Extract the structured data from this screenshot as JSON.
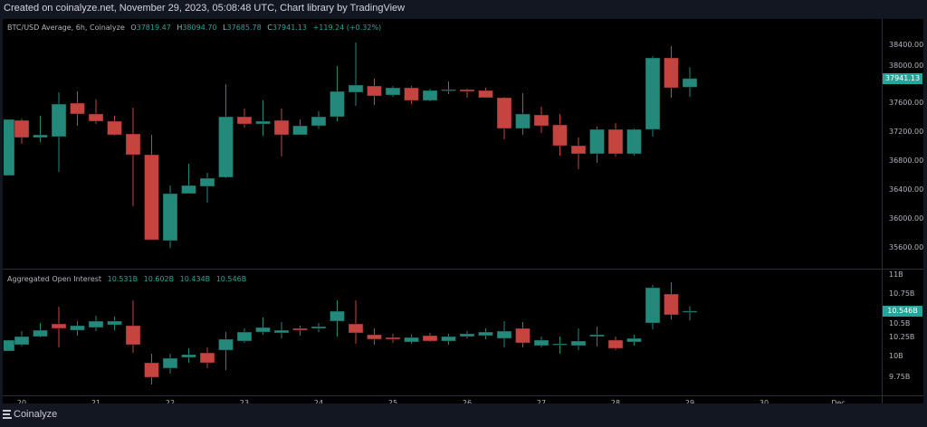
{
  "header": {
    "title": "Created on coinalyze.net, November 29, 2023, 05:08:48 UTC, Chart library by TradingView"
  },
  "colors": {
    "up": "#22897b",
    "down": "#c5443f",
    "accent": "#26a69a",
    "background": "#000000",
    "frame": "#131722"
  },
  "price_pane": {
    "symbol_label": "BTC/USD Average, 6h, Coinalyze",
    "o_key": "O",
    "o": "37819.47",
    "h_key": "H",
    "h": "38094.70",
    "l_key": "L",
    "l": "37685.78",
    "c_key": "C",
    "c": "37941.13",
    "change": "+119.24 (+0.32%)",
    "last_price_tag": "37941.13",
    "axis_ticks": [
      "38400.00",
      "38000.00",
      "37600.00",
      "37200.00",
      "36800.00",
      "36400.00",
      "36000.00",
      "35600.00"
    ]
  },
  "oi_pane": {
    "label": "Aggregated Open Interest",
    "values": [
      "10.531B",
      "10.602B",
      "10.434B",
      "10.546B"
    ],
    "last_value_tag": "10.546B",
    "axis_ticks": [
      "11B",
      "10.75B",
      "10.5B",
      "10.25B",
      "10B",
      "9.75B"
    ]
  },
  "time_axis": {
    "labels": [
      "20",
      "21",
      "22",
      "23",
      "24",
      "25",
      "26",
      "27",
      "28",
      "29",
      "30",
      "Dec"
    ]
  },
  "footer": {
    "brand": "Coinalyze"
  },
  "chart_data": [
    {
      "type": "candlestick",
      "title": "BTC/USD Average, 6h, Coinalyze",
      "interval": "6h",
      "x_start": "Nov 19 18:00",
      "ylim": [
        35400,
        38700
      ],
      "columns": [
        "open",
        "high",
        "low",
        "close"
      ],
      "candles": [
        [
          36600,
          37375,
          36600,
          37375
        ],
        [
          37362,
          37387,
          37037,
          37125
        ],
        [
          37125,
          37425,
          37062,
          37162
        ],
        [
          37137,
          37750,
          36650,
          37587
        ],
        [
          37600,
          37762,
          37287,
          37450
        ],
        [
          37450,
          37650,
          37312,
          37350
        ],
        [
          37350,
          37425,
          37150,
          37162
        ],
        [
          37175,
          37537,
          36175,
          36887
        ],
        [
          36887,
          37162,
          35712,
          35712
        ],
        [
          35700,
          36462,
          35600,
          36350
        ],
        [
          36350,
          36762,
          36350,
          36462
        ],
        [
          36450,
          36637,
          36225,
          36562
        ],
        [
          36575,
          37862,
          36562,
          37412
        ],
        [
          37412,
          37525,
          37262,
          37312
        ],
        [
          37312,
          37637,
          37150,
          37350
        ],
        [
          37362,
          37525,
          36862,
          37162
        ],
        [
          37162,
          37375,
          37162,
          37287
        ],
        [
          37287,
          37487,
          37250,
          37412
        ],
        [
          37412,
          38112,
          37350,
          37762
        ],
        [
          37750,
          38437,
          37562,
          37850
        ],
        [
          37837,
          37937,
          37575,
          37700
        ],
        [
          37712,
          37837,
          37687,
          37812
        ],
        [
          37812,
          37837,
          37587,
          37637
        ],
        [
          37637,
          37800,
          37625,
          37775
        ],
        [
          37775,
          37900,
          37725,
          37787
        ],
        [
          37787,
          37800,
          37675,
          37762
        ],
        [
          37775,
          37812,
          37675,
          37675
        ],
        [
          37675,
          37687,
          37100,
          37250
        ],
        [
          37250,
          37737,
          37162,
          37450
        ],
        [
          37437,
          37550,
          37187,
          37287
        ],
        [
          37300,
          37450,
          36875,
          37012
        ],
        [
          37012,
          37125,
          36687,
          36900
        ],
        [
          36900,
          37275,
          36775,
          37237
        ],
        [
          37237,
          37325,
          36862,
          36900
        ],
        [
          36900,
          37250,
          36875,
          37237
        ],
        [
          37237,
          38250,
          37137,
          38225
        ],
        [
          38225,
          38387,
          37675,
          37812
        ],
        [
          37819.47,
          38094.7,
          37685.78,
          37941.13
        ]
      ]
    },
    {
      "type": "candlestick",
      "title": "Aggregated Open Interest",
      "unit": "B",
      "ylim": [
        9.6,
        11.0
      ],
      "columns": [
        "open",
        "high",
        "low",
        "close"
      ],
      "candles": [
        [
          10.065,
          10.196,
          10.065,
          10.196
        ],
        [
          10.141,
          10.304,
          10.12,
          10.239
        ],
        [
          10.239,
          10.402,
          10.228,
          10.315
        ],
        [
          10.391,
          10.598,
          10.109,
          10.337
        ],
        [
          10.315,
          10.424,
          10.25,
          10.37
        ],
        [
          10.348,
          10.489,
          10.304,
          10.424
        ],
        [
          10.38,
          10.478,
          10.315,
          10.424
        ],
        [
          10.37,
          10.674,
          10.043,
          10.141
        ],
        [
          9.924,
          10.033,
          9.663,
          9.75
        ],
        [
          9.859,
          10.033,
          9.793,
          9.978
        ],
        [
          9.989,
          10.098,
          9.924,
          10.022
        ],
        [
          10.043,
          10.109,
          9.859,
          9.924
        ],
        [
          10.076,
          10.293,
          9.837,
          10.207
        ],
        [
          10.185,
          10.337,
          10.163,
          10.293
        ],
        [
          10.293,
          10.467,
          10.261,
          10.348
        ],
        [
          10.283,
          10.413,
          10.217,
          10.315
        ],
        [
          10.337,
          10.37,
          10.25,
          10.315
        ],
        [
          10.337,
          10.402,
          10.293,
          10.359
        ],
        [
          10.424,
          10.674,
          10.239,
          10.543
        ],
        [
          10.391,
          10.674,
          10.152,
          10.283
        ],
        [
          10.261,
          10.337,
          10.141,
          10.207
        ],
        [
          10.228,
          10.272,
          10.163,
          10.207
        ],
        [
          10.174,
          10.261,
          10.152,
          10.228
        ],
        [
          10.25,
          10.283,
          10.174,
          10.185
        ],
        [
          10.185,
          10.272,
          10.141,
          10.239
        ],
        [
          10.239,
          10.304,
          10.217,
          10.272
        ],
        [
          10.25,
          10.337,
          10.207,
          10.293
        ],
        [
          10.217,
          10.424,
          10.109,
          10.304
        ],
        [
          10.337,
          10.413,
          10.109,
          10.163
        ],
        [
          10.13,
          10.239,
          10.109,
          10.196
        ],
        [
          10.141,
          10.239,
          10.033,
          10.152
        ],
        [
          10.13,
          10.337,
          10.076,
          10.185
        ],
        [
          10.239,
          10.359,
          10.12,
          10.261
        ],
        [
          10.196,
          10.239,
          10.076,
          10.098
        ],
        [
          10.174,
          10.261,
          10.13,
          10.217
        ],
        [
          10.402,
          10.859,
          10.326,
          10.826
        ],
        [
          10.75,
          10.891,
          10.446,
          10.5
        ],
        [
          10.531,
          10.602,
          10.434,
          10.546
        ]
      ]
    }
  ]
}
